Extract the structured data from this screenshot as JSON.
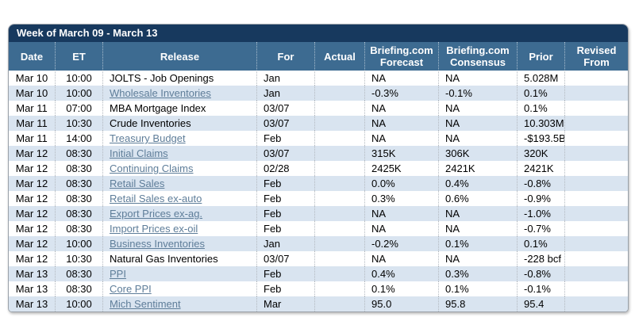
{
  "colors": {
    "title_bar_bg": "#17395e",
    "header_bg": "#3d6b91",
    "alt_row_bg": "#d9e4f0",
    "link_color": "#5e7d99",
    "header_text": "#ffffff",
    "body_text": "#000000",
    "border": "#9aa1a9"
  },
  "table": {
    "title": "Week of March 09 - March 13",
    "columns": [
      {
        "label": "Date"
      },
      {
        "label": "ET"
      },
      {
        "label": "Release"
      },
      {
        "label": "For"
      },
      {
        "label": "Actual"
      },
      {
        "label": "Briefing.com Forecast"
      },
      {
        "label": "Briefing.com Consensus"
      },
      {
        "label": "Prior"
      },
      {
        "label": "Revised From"
      }
    ],
    "rows": [
      {
        "date": "Mar 10",
        "et": "10:00",
        "release": "JOLTS - Job Openings",
        "release_link": false,
        "for": "Jan",
        "actual": "",
        "forecast": "NA",
        "consensus": "NA",
        "prior": "5.028M",
        "revised_from": ""
      },
      {
        "date": "Mar 10",
        "et": "10:00",
        "release": "Wholesale Inventories",
        "release_link": true,
        "for": "Jan",
        "actual": "",
        "forecast": "-0.3%",
        "consensus": "-0.1%",
        "prior": "0.1%",
        "revised_from": ""
      },
      {
        "date": "Mar 11",
        "et": "07:00",
        "release": "MBA Mortgage Index",
        "release_link": false,
        "for": "03/07",
        "actual": "",
        "forecast": "NA",
        "consensus": "NA",
        "prior": "0.1%",
        "revised_from": ""
      },
      {
        "date": "Mar 11",
        "et": "10:30",
        "release": "Crude Inventories",
        "release_link": false,
        "for": "03/07",
        "actual": "",
        "forecast": "NA",
        "consensus": "NA",
        "prior": "10.303M",
        "revised_from": ""
      },
      {
        "date": "Mar 11",
        "et": "14:00",
        "release": "Treasury Budget",
        "release_link": true,
        "for": "Feb",
        "actual": "",
        "forecast": "NA",
        "consensus": "NA",
        "prior": "-$193.5B",
        "revised_from": ""
      },
      {
        "date": "Mar 12",
        "et": "08:30",
        "release": "Initial Claims",
        "release_link": true,
        "for": "03/07",
        "actual": "",
        "forecast": "315K",
        "consensus": "306K",
        "prior": "320K",
        "revised_from": ""
      },
      {
        "date": "Mar 12",
        "et": "08:30",
        "release": "Continuing Claims",
        "release_link": true,
        "for": "02/28",
        "actual": "",
        "forecast": "2425K",
        "consensus": "2421K",
        "prior": "2421K",
        "revised_from": ""
      },
      {
        "date": "Mar 12",
        "et": "08:30",
        "release": "Retail Sales",
        "release_link": true,
        "for": "Feb",
        "actual": "",
        "forecast": "0.0%",
        "consensus": "0.4%",
        "prior": "-0.8%",
        "revised_from": ""
      },
      {
        "date": "Mar 12",
        "et": "08:30",
        "release": "Retail Sales ex-auto",
        "release_link": true,
        "for": "Feb",
        "actual": "",
        "forecast": "0.3%",
        "consensus": "0.6%",
        "prior": "-0.9%",
        "revised_from": ""
      },
      {
        "date": "Mar 12",
        "et": "08:30",
        "release": "Export Prices ex-ag.",
        "release_link": true,
        "for": "Feb",
        "actual": "",
        "forecast": "NA",
        "consensus": "NA",
        "prior": "-1.0%",
        "revised_from": ""
      },
      {
        "date": "Mar 12",
        "et": "08:30",
        "release": "Import Prices ex-oil",
        "release_link": true,
        "for": "Feb",
        "actual": "",
        "forecast": "NA",
        "consensus": "NA",
        "prior": "-0.7%",
        "revised_from": ""
      },
      {
        "date": "Mar 12",
        "et": "10:00",
        "release": "Business Inventories",
        "release_link": true,
        "for": "Jan",
        "actual": "",
        "forecast": "-0.2%",
        "consensus": "0.1%",
        "prior": "0.1%",
        "revised_from": ""
      },
      {
        "date": "Mar 12",
        "et": "10:30",
        "release": "Natural Gas Inventories",
        "release_link": false,
        "for": "03/07",
        "actual": "",
        "forecast": "NA",
        "consensus": "NA",
        "prior": "-228 bcf",
        "revised_from": ""
      },
      {
        "date": "Mar 13",
        "et": "08:30",
        "release": "PPI",
        "release_link": true,
        "for": "Feb",
        "actual": "",
        "forecast": "0.4%",
        "consensus": "0.3%",
        "prior": "-0.8%",
        "revised_from": ""
      },
      {
        "date": "Mar 13",
        "et": "08:30",
        "release": "Core PPI",
        "release_link": true,
        "for": "Feb",
        "actual": "",
        "forecast": "0.1%",
        "consensus": "0.1%",
        "prior": "-0.1%",
        "revised_from": ""
      },
      {
        "date": "Mar 13",
        "et": "10:00",
        "release": "Mich Sentiment",
        "release_link": true,
        "for": "Mar",
        "actual": "",
        "forecast": "95.0",
        "consensus": "95.8",
        "prior": "95.4",
        "revised_from": ""
      }
    ]
  }
}
